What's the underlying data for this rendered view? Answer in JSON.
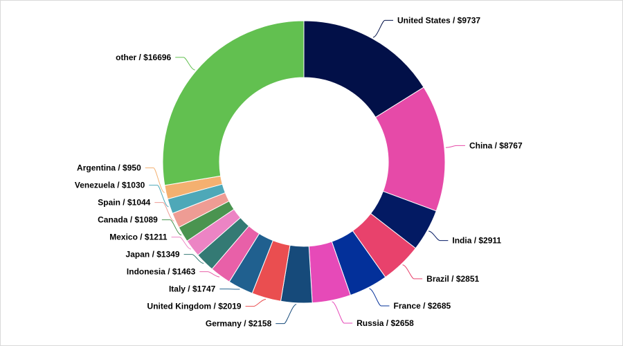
{
  "chart_data": {
    "type": "pie",
    "donut": true,
    "title": "",
    "label_format": "{name} / ${value}",
    "legend": "none",
    "slices": [
      {
        "name": "United States",
        "value": 9737,
        "label": "United States / $9737",
        "color": "#021048"
      },
      {
        "name": "China",
        "value": 8767,
        "label": "China / $8767",
        "color": "#e64aa8"
      },
      {
        "name": "India",
        "value": 2911,
        "label": "India / $2911",
        "color": "#031a63"
      },
      {
        "name": "Brazil",
        "value": 2851,
        "label": "Brazil / $2851",
        "color": "#e8426c"
      },
      {
        "name": "France",
        "value": 2685,
        "label": "France / $2685",
        "color": "#03309a"
      },
      {
        "name": "Russia",
        "value": 2658,
        "label": "Russia / $2658",
        "color": "#e64ab8"
      },
      {
        "name": "Germany",
        "value": 2158,
        "label": "Germany / $2158",
        "color": "#164a7a"
      },
      {
        "name": "United Kingdom",
        "value": 2019,
        "label": "United Kingdom / $2019",
        "color": "#ea4e50"
      },
      {
        "name": "Italy",
        "value": 1747,
        "label": "Italy / $1747",
        "color": "#20608f"
      },
      {
        "name": "Indonesia",
        "value": 1463,
        "label": "Indonesia / $1463",
        "color": "#e860a8"
      },
      {
        "name": "Japan",
        "value": 1349,
        "label": "Japan / $1349",
        "color": "#347a74"
      },
      {
        "name": "Mexico",
        "value": 1211,
        "label": "Mexico / $1211",
        "color": "#ec84c4"
      },
      {
        "name": "Canada",
        "value": 1089,
        "label": "Canada / $1089",
        "color": "#4a9450"
      },
      {
        "name": "Spain",
        "value": 1044,
        "label": "Spain / $1044",
        "color": "#ee9c94"
      },
      {
        "name": "Venezuela",
        "value": 1030,
        "label": "Venezuela / $1030",
        "color": "#4ea8b8"
      },
      {
        "name": "Argentina",
        "value": 950,
        "label": "Argentina / $950",
        "color": "#f4b070"
      },
      {
        "name": "other",
        "value": 16696,
        "label": "other / $16696",
        "color": "#62c050"
      }
    ]
  }
}
